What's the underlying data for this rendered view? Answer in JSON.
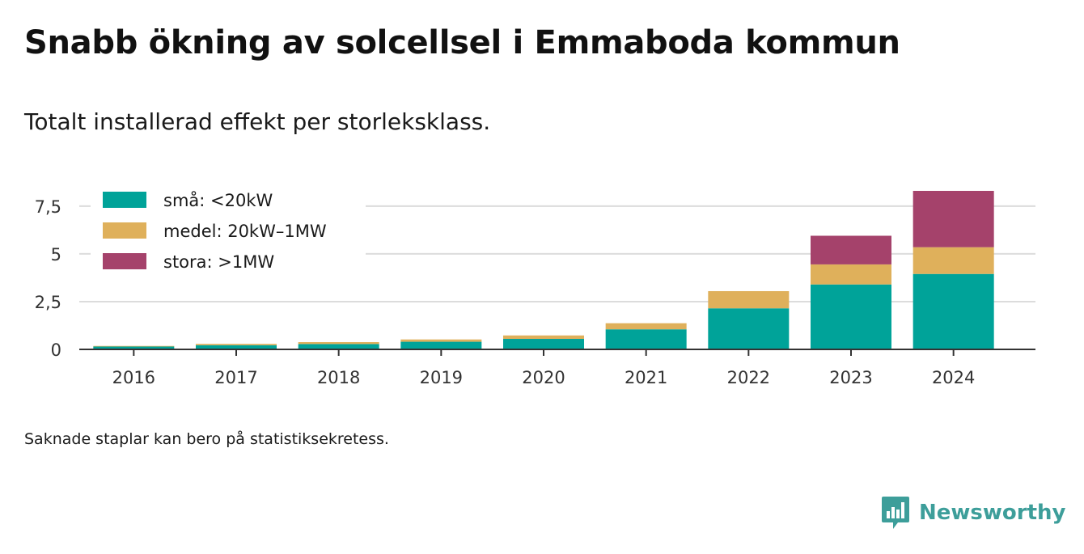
{
  "title": "Snabb ökning av solcellsel i Emmaboda kommun",
  "subtitle": "Totalt installerad effekt per storleksklass.",
  "footnote": "Saknade staplar kan bero på statistiksekretess.",
  "brand": {
    "name": "Newsworthy",
    "icon": "bar-chart-speech-bubble-icon",
    "color": "#3d9e9a"
  },
  "chart_data": {
    "type": "bar",
    "stacked": true,
    "categories": [
      "2016",
      "2017",
      "2018",
      "2019",
      "2020",
      "2021",
      "2022",
      "2023",
      "2024"
    ],
    "series": [
      {
        "name": "små: <20kW",
        "color": "#00a399",
        "values": [
          0.15,
          0.22,
          0.28,
          0.4,
          0.55,
          1.05,
          2.15,
          3.4,
          3.95
        ]
      },
      {
        "name": "medel: 20kW–1MW",
        "color": "#dfb05b",
        "values": [
          0.03,
          0.07,
          0.1,
          0.12,
          0.18,
          0.32,
          0.9,
          1.05,
          1.4
        ]
      },
      {
        "name": "stora: >1MW",
        "color": "#a5426b",
        "values": [
          0,
          0,
          0,
          0,
          0,
          0,
          0,
          1.5,
          2.95
        ]
      }
    ],
    "yticks": [
      0,
      2.5,
      5,
      7.5
    ],
    "ytick_labels": [
      "0",
      "2,5",
      "5",
      "7,5"
    ],
    "ylim": [
      0,
      8.3
    ],
    "xlabel": "",
    "ylabel": "",
    "grid": true,
    "legend": "top-left"
  }
}
